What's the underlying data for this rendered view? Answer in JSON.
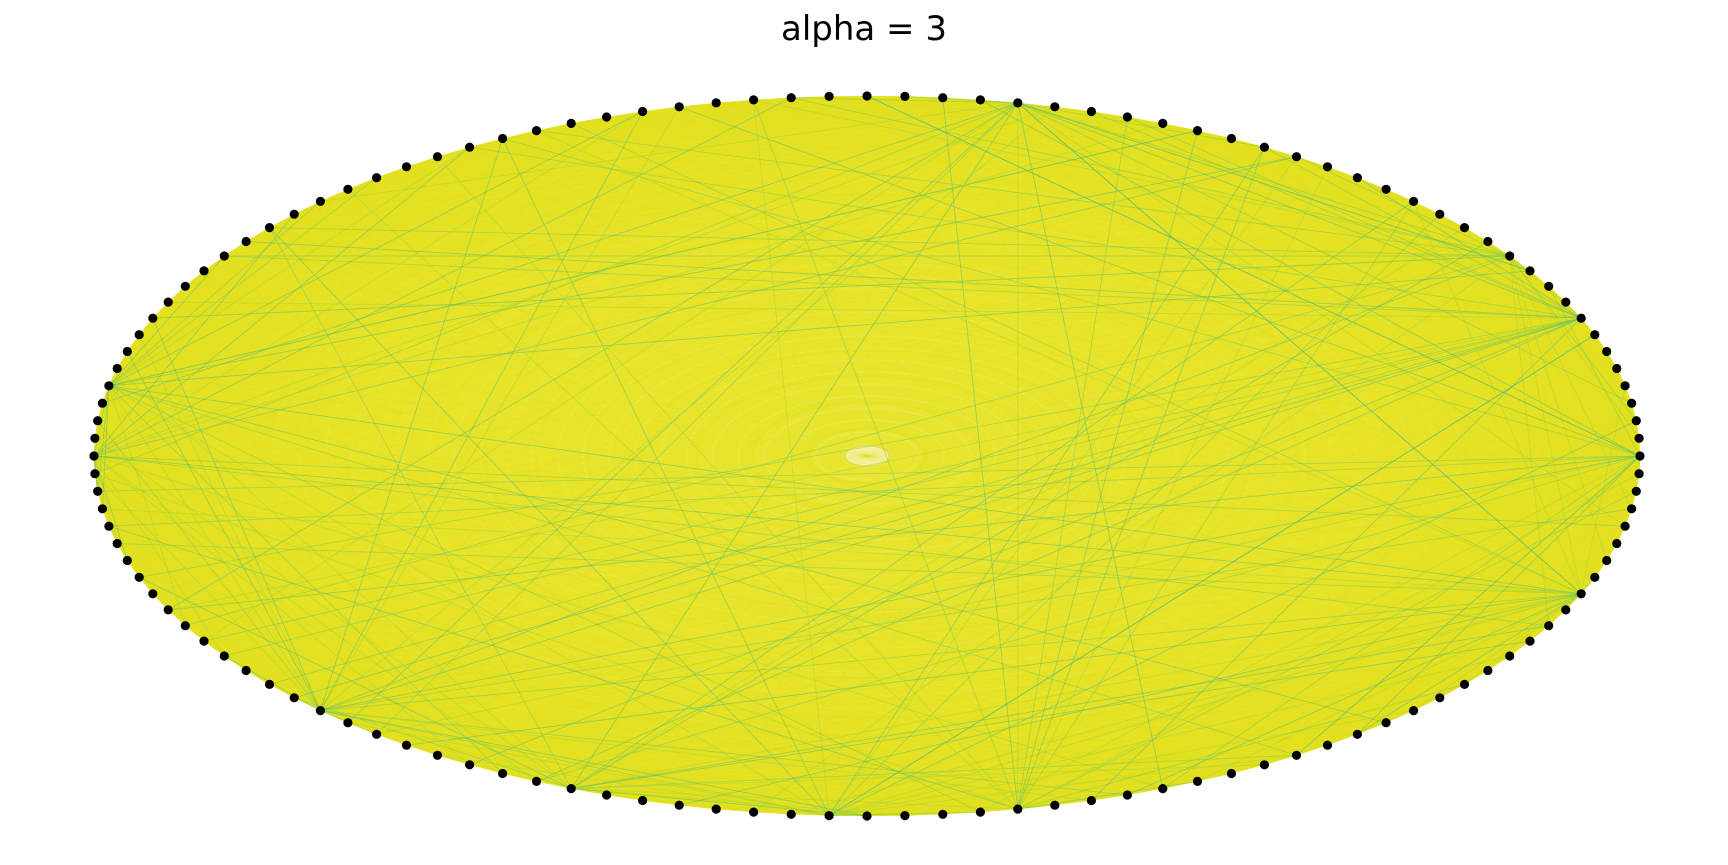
{
  "figure": {
    "title": "alpha = 3"
  },
  "graph": {
    "layout": "circular",
    "node_count": 128,
    "node_color": "#000000",
    "edge_colormap": [
      "#e8e41f",
      "#c5df28",
      "#9bd33c",
      "#6cc55a",
      "#44b77a"
    ],
    "edge_density": "complete"
  }
}
